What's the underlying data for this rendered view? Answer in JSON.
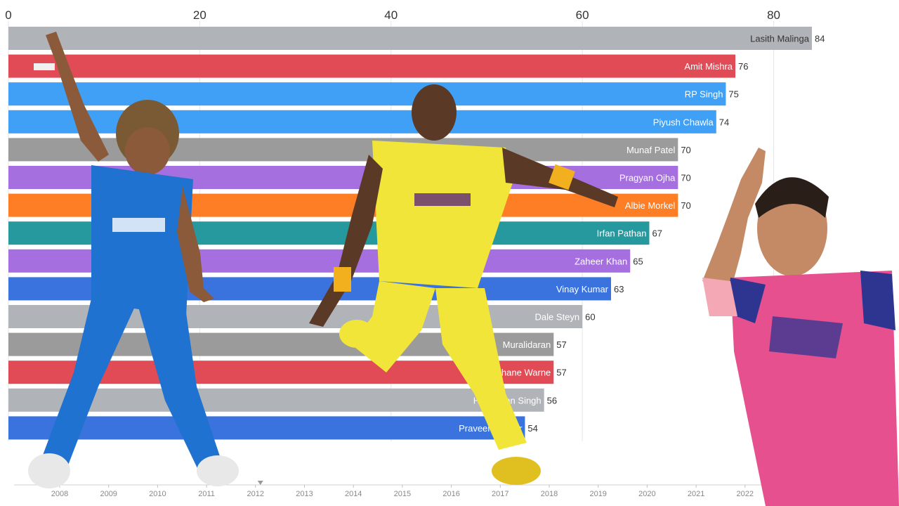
{
  "chart_data": {
    "type": "bar",
    "orientation": "horizontal",
    "categories": [
      "Lasith Malinga",
      "Amit Mishra",
      "RP Singh",
      "Piyush Chawla",
      "Munaf Patel",
      "Pragyan Ojha",
      "Albie Morkel",
      "Irfan Pathan",
      "Zaheer Khan",
      "Vinay Kumar",
      "Dale Steyn",
      "Muralidaran",
      "Shane Warne",
      "Harbhajan Singh",
      "Praveen Kumar"
    ],
    "values": [
      84,
      76,
      75,
      74,
      70,
      70,
      70,
      67,
      65,
      63,
      60,
      57,
      57,
      56,
      54
    ],
    "colors": [
      "#b0b3b8",
      "#e04b55",
      "#3fa0f5",
      "#3fa0f5",
      "#9b9b9b",
      "#a66fe0",
      "#fd7e24",
      "#26999e",
      "#a66fe0",
      "#3b73de",
      "#b0b3b8",
      "#9b9b9b",
      "#e04b55",
      "#b0b3b8",
      "#3b73de"
    ],
    "xlim": [
      0,
      84
    ],
    "x_ticks": [
      0,
      20,
      40,
      60,
      80
    ],
    "timeline": {
      "years": [
        2008,
        2009,
        2010,
        2011,
        2012,
        2013,
        2014,
        2015,
        2016,
        2017,
        2018,
        2019,
        2020,
        2021,
        2022
      ],
      "current_marker_year": 2012.1
    },
    "grid": true,
    "legend": "none"
  },
  "photos": [
    {
      "name": "player-left",
      "jersey": "#1f72cf",
      "skin": "#8a5a3a"
    },
    {
      "name": "player-center",
      "jersey": "#f2e53a",
      "skin": "#5a3a26"
    },
    {
      "name": "player-right",
      "jersey": "#e6508e",
      "skin": "#c48a66"
    }
  ]
}
